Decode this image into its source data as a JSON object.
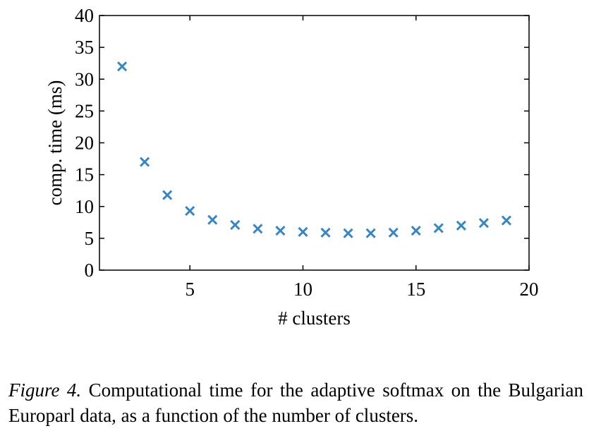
{
  "chart_data": {
    "type": "scatter",
    "title": "",
    "xlabel": "# clusters",
    "ylabel": "comp. time (ms)",
    "xlim": [
      1,
      20
    ],
    "ylim": [
      0,
      40
    ],
    "xticks": [
      5,
      10,
      15,
      20
    ],
    "yticks": [
      0,
      5,
      10,
      15,
      20,
      25,
      30,
      35,
      40
    ],
    "marker": "x",
    "marker_color": "#3a86be",
    "grid": false,
    "series": [
      {
        "x": [
          2,
          3,
          4,
          5,
          6,
          7,
          8,
          9,
          10,
          11,
          12,
          13,
          14,
          15,
          16,
          17,
          18,
          19
        ],
        "y": [
          32.0,
          17.0,
          11.8,
          9.3,
          7.9,
          7.1,
          6.5,
          6.2,
          6.0,
          5.9,
          5.8,
          5.8,
          5.9,
          6.2,
          6.6,
          7.0,
          7.4,
          7.8
        ]
      }
    ]
  },
  "caption": {
    "label": "Figure 4.",
    "text": " Computational time for the adaptive softmax on the Bulgarian Europarl data, as a function of the number of clusters."
  }
}
